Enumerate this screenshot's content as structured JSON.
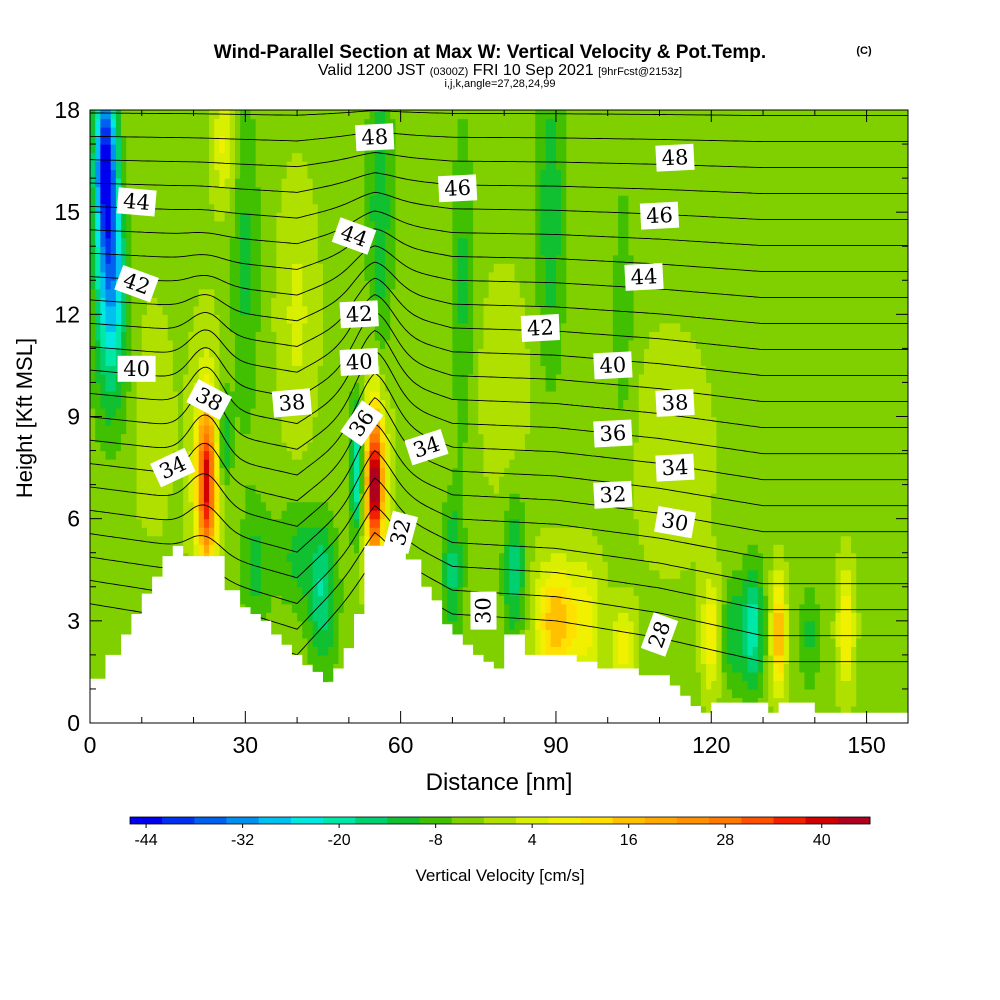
{
  "title": {
    "main": "Wind-Parallel Section at Max W: Vertical Velocity & Pot.Temp.",
    "copyright": "(C)",
    "valid_prefix": "Valid 1200 JST",
    "valid_utc": "(0300Z)",
    "valid_date": "FRI 10 Sep 2021",
    "forecast": "[9hrFcst@2153z]",
    "params": "i,j,k,angle=27,28,24,99"
  },
  "chart_data": {
    "type": "heatmap",
    "xlabel": "Distance [nm]",
    "ylabel": "Height [Kft MSL]",
    "xlim": [
      0,
      158
    ],
    "ylim": [
      0,
      18
    ],
    "xticks": [
      0,
      30,
      60,
      90,
      120,
      150
    ],
    "yticks": [
      0,
      3,
      6,
      9,
      12,
      15,
      18
    ],
    "terrain_profile": {
      "x": [
        0,
        3,
        3,
        6,
        6,
        8,
        8,
        10,
        10,
        12,
        12,
        14,
        14,
        16,
        16,
        18,
        18,
        26,
        26,
        29,
        29,
        31,
        31,
        33,
        33,
        35,
        35,
        37,
        37,
        39,
        39,
        41,
        41,
        43,
        43,
        45,
        45,
        47,
        47,
        49,
        49,
        51,
        51,
        53,
        53,
        61,
        61,
        64,
        64,
        66,
        66,
        68,
        68,
        70,
        70,
        72,
        72,
        74,
        74,
        76,
        76,
        78,
        78,
        80,
        80,
        84,
        84,
        94,
        94,
        98,
        98,
        106,
        106,
        112,
        112,
        114,
        114,
        116,
        116,
        118,
        118,
        120,
        120,
        131,
        131,
        133,
        133,
        140,
        140,
        158
      ],
      "y": [
        1.3,
        1.3,
        2.0,
        2.0,
        2.6,
        2.6,
        3.2,
        3.2,
        3.8,
        3.8,
        4.3,
        4.3,
        4.9,
        4.9,
        5.2,
        5.2,
        4.9,
        4.9,
        3.9,
        3.9,
        3.4,
        3.4,
        3.2,
        3.2,
        3.0,
        3.0,
        2.6,
        2.6,
        2.3,
        2.3,
        2.0,
        2.0,
        1.7,
        1.7,
        1.5,
        1.5,
        1.2,
        1.2,
        1.6,
        1.6,
        2.2,
        2.2,
        3.2,
        3.2,
        5.2,
        5.2,
        4.8,
        4.8,
        4.0,
        4.0,
        3.6,
        3.6,
        2.9,
        2.9,
        2.6,
        2.6,
        2.3,
        2.3,
        2.0,
        2.0,
        1.8,
        1.8,
        1.6,
        1.6,
        2.6,
        2.6,
        2.0,
        2.0,
        1.8,
        1.8,
        1.6,
        1.6,
        1.4,
        1.4,
        1.1,
        1.1,
        0.8,
        0.8,
        0.5,
        0.5,
        0.3,
        0.3,
        0.6,
        0.6,
        0.3,
        0.3,
        0.6,
        0.6,
        0.3,
        0.3
      ]
    },
    "w_features": [
      {
        "x": 3,
        "y": 16.5,
        "sx": 1.5,
        "sy": 1.6,
        "amp": -42
      },
      {
        "x": 4,
        "y": 13.5,
        "sx": 1.8,
        "sy": 1.6,
        "amp": -24
      },
      {
        "x": 4,
        "y": 11,
        "sx": 2.5,
        "sy": 2,
        "amp": -12
      },
      {
        "x": 22.5,
        "y": 7,
        "sx": 1.2,
        "sy": 1.5,
        "amp": 32
      },
      {
        "x": 22.5,
        "y": 7.5,
        "sx": 2,
        "sy": 2.4,
        "amp": 12
      },
      {
        "x": 26,
        "y": 8.3,
        "sx": 1,
        "sy": 1,
        "amp": -12
      },
      {
        "x": 55,
        "y": 7,
        "sx": 1,
        "sy": 1.4,
        "amp": 40
      },
      {
        "x": 55,
        "y": 7.5,
        "sx": 2,
        "sy": 2.2,
        "amp": 14
      },
      {
        "x": 51.5,
        "y": 7.5,
        "sx": 0.9,
        "sy": 1.4,
        "amp": -22
      },
      {
        "x": 45,
        "y": 3.7,
        "sx": 2,
        "sy": 1.5,
        "amp": -14
      },
      {
        "x": 32,
        "y": 4.5,
        "sx": 2,
        "sy": 1.5,
        "amp": -8
      },
      {
        "x": 40,
        "y": 5,
        "sx": 3,
        "sy": 1.2,
        "amp": -8
      },
      {
        "x": 70,
        "y": 4.5,
        "sx": 1.5,
        "sy": 1.5,
        "amp": -12
      },
      {
        "x": 82,
        "y": 4.5,
        "sx": 1.5,
        "sy": 1.5,
        "amp": -14
      },
      {
        "x": 90,
        "y": 3,
        "sx": 2.8,
        "sy": 1.2,
        "amp": 20
      },
      {
        "x": 96,
        "y": 3,
        "sx": 2,
        "sy": 1.2,
        "amp": 10
      },
      {
        "x": 103,
        "y": 2.3,
        "sx": 1.5,
        "sy": 0.8,
        "amp": 12
      },
      {
        "x": 120,
        "y": 2.6,
        "sx": 1.2,
        "sy": 1.1,
        "amp": 14
      },
      {
        "x": 124,
        "y": 2.6,
        "sx": 1.5,
        "sy": 1.1,
        "amp": -10
      },
      {
        "x": 128,
        "y": 2.8,
        "sx": 1.5,
        "sy": 1.3,
        "amp": -18
      },
      {
        "x": 133,
        "y": 2.6,
        "sx": 1,
        "sy": 1.1,
        "amp": 22
      },
      {
        "x": 139,
        "y": 2.6,
        "sx": 1.4,
        "sy": 1.1,
        "amp": -8
      },
      {
        "x": 146,
        "y": 2.8,
        "sx": 1.1,
        "sy": 1.2,
        "amp": 14
      },
      {
        "x": 30,
        "y": 13.5,
        "sx": 2,
        "sy": 3.5,
        "amp": -8
      },
      {
        "x": 56,
        "y": 15,
        "sx": 1.8,
        "sy": 4,
        "amp": -10
      },
      {
        "x": 72,
        "y": 13,
        "sx": 1.5,
        "sy": 3.5,
        "amp": -8
      },
      {
        "x": 89,
        "y": 15,
        "sx": 2,
        "sy": 3.5,
        "amp": -10
      },
      {
        "x": 103,
        "y": 12,
        "sx": 1.5,
        "sy": 3,
        "amp": -6
      },
      {
        "x": 40,
        "y": 12,
        "sx": 2.5,
        "sy": 2.5,
        "amp": 6
      },
      {
        "x": 26,
        "y": 17,
        "sx": 1.5,
        "sy": 1.2,
        "amp": 10
      },
      {
        "x": 12,
        "y": 9,
        "sx": 2.5,
        "sy": 2,
        "amp": 5
      },
      {
        "x": 80,
        "y": 10,
        "sx": 3,
        "sy": 2,
        "amp": 5
      },
      {
        "x": 112,
        "y": 8,
        "sx": 6,
        "sy": 2.5,
        "amp": 3
      }
    ],
    "w_background": -3,
    "theta_levels": [
      27,
      28,
      29,
      30,
      31,
      32,
      33,
      34,
      35,
      36,
      37,
      38,
      39,
      40,
      41,
      42,
      43,
      44,
      45,
      46,
      47,
      48,
      49
    ],
    "theta_surface": {
      "x": [
        0,
        20,
        40,
        55,
        70,
        90,
        110,
        130,
        158
      ],
      "y": [
        3.5,
        3,
        2,
        4.5,
        3.2,
        3,
        2.5,
        1.8,
        1.8
      ]
    },
    "theta_top": 18.6,
    "theta_bumps": [
      {
        "x": 22.5,
        "y": 8.5,
        "sx": 3,
        "sy": 2.5,
        "amp": 1.2
      },
      {
        "x": 55,
        "y": 9.5,
        "sx": 3.5,
        "sy": 3,
        "amp": 1.3
      }
    ],
    "contour_labels": [
      {
        "text": "48",
        "x": 55,
        "y": 17.2,
        "angle": -3
      },
      {
        "text": "48",
        "x": 113,
        "y": 16.6,
        "angle": -3
      },
      {
        "text": "46",
        "x": 71,
        "y": 15.7,
        "angle": -3
      },
      {
        "text": "46",
        "x": 110,
        "y": 14.9,
        "angle": -3
      },
      {
        "text": "44",
        "x": 9,
        "y": 15.3,
        "angle": 5
      },
      {
        "text": "44",
        "x": 51,
        "y": 14.3,
        "angle": 20
      },
      {
        "text": "44",
        "x": 107,
        "y": 13.1,
        "angle": -3
      },
      {
        "text": "42",
        "x": 9,
        "y": 12.9,
        "angle": 20
      },
      {
        "text": "42",
        "x": 52,
        "y": 12,
        "angle": -3
      },
      {
        "text": "42",
        "x": 87,
        "y": 11.6,
        "angle": -3
      },
      {
        "text": "40",
        "x": 9,
        "y": 10.4,
        "angle": 0
      },
      {
        "text": "40",
        "x": 52,
        "y": 10.6,
        "angle": -3
      },
      {
        "text": "40",
        "x": 101,
        "y": 10.5,
        "angle": -3
      },
      {
        "text": "38",
        "x": 23,
        "y": 9.5,
        "angle": 28
      },
      {
        "text": "38",
        "x": 39,
        "y": 9.4,
        "angle": -5
      },
      {
        "text": "38",
        "x": 113,
        "y": 9.4,
        "angle": -3
      },
      {
        "text": "36",
        "x": 52.5,
        "y": 8.8,
        "angle": -55
      },
      {
        "text": "36",
        "x": 101,
        "y": 8.5,
        "angle": -3
      },
      {
        "text": "34",
        "x": 16,
        "y": 7.5,
        "angle": -25
      },
      {
        "text": "34",
        "x": 65,
        "y": 8.1,
        "angle": -18
      },
      {
        "text": "34",
        "x": 113,
        "y": 7.5,
        "angle": -3
      },
      {
        "text": "32",
        "x": 60,
        "y": 5.6,
        "angle": -75
      },
      {
        "text": "32",
        "x": 101,
        "y": 6.7,
        "angle": -3
      },
      {
        "text": "30",
        "x": 76,
        "y": 3.3,
        "angle": -90
      },
      {
        "text": "30",
        "x": 113,
        "y": 5.9,
        "angle": 10
      },
      {
        "text": "28",
        "x": 110,
        "y": 2.6,
        "angle": -70
      }
    ]
  },
  "colorbar": {
    "label": "Vertical Velocity [cm/s]",
    "min": -46,
    "max": 46,
    "step": 4,
    "tick_values": [
      -44,
      -32,
      -20,
      -8,
      4,
      16,
      28,
      40
    ],
    "tick_labels": [
      "-44",
      "-32",
      "-20",
      "-8",
      "4",
      "16",
      "28",
      "40"
    ],
    "colors": [
      "#0000f0",
      "#0030f0",
      "#0060f0",
      "#0090f0",
      "#00c0f0",
      "#00e8e0",
      "#00e8a8",
      "#00d070",
      "#10c030",
      "#40c000",
      "#80d000",
      "#b0e000",
      "#d8f000",
      "#f0f000",
      "#ffe000",
      "#ffc000",
      "#ffa800",
      "#ff9000",
      "#ff7800",
      "#ff5000",
      "#f02000",
      "#d00000",
      "#b00020",
      "#900060",
      "#700090"
    ]
  }
}
